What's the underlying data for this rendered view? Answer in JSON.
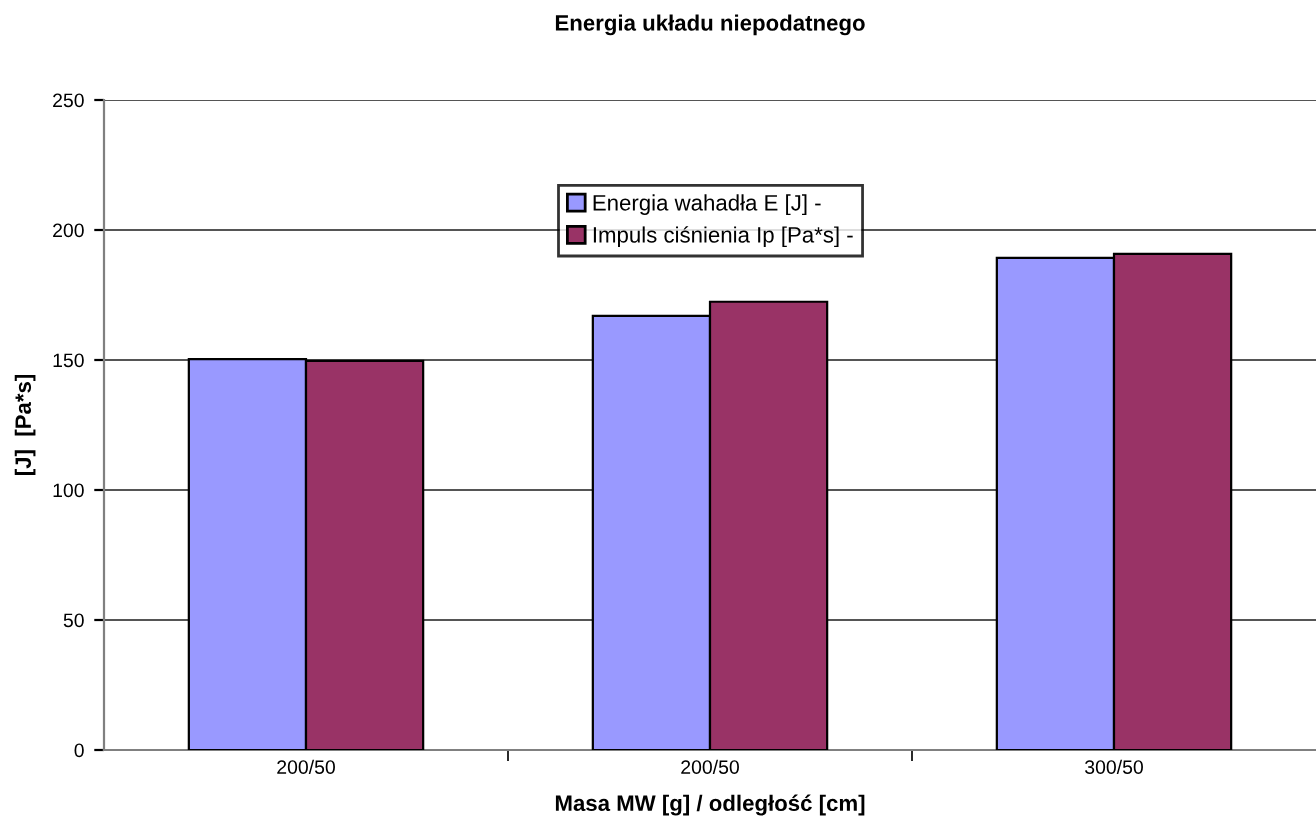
{
  "chart_data": {
    "type": "bar",
    "title": "Energia układu niepodatnego",
    "xlabel": "Masa MW [g] / odległość [cm]",
    "ylabel": "[J]  [Pa*s]",
    "categories": [
      "200/50",
      "200/50",
      "300/50"
    ],
    "series": [
      {
        "name": "Energia wahadła E [J] -",
        "color": "#9999ff",
        "values": [
          150.3,
          167,
          189.3
        ]
      },
      {
        "name": "Impuls ciśnienia Ip [Pa*s] -",
        "color": "#993366",
        "values": [
          149.7,
          172.4,
          190.8
        ]
      }
    ],
    "ylim": [
      0,
      250
    ],
    "yticks": [
      0,
      50,
      100,
      150,
      200,
      250
    ],
    "grid": "y",
    "legend": "top"
  }
}
